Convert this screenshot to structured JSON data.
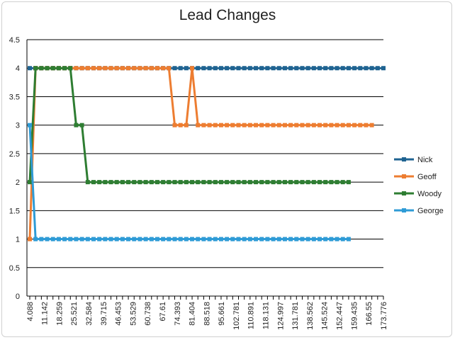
{
  "chart_data": {
    "type": "line",
    "title": "Lead Changes",
    "ylim": [
      0,
      4.5
    ],
    "ytick_step": 0.5,
    "yticks": [
      "0",
      "0.5",
      "1",
      "1.5",
      "2",
      "2.5",
      "3",
      "3.5",
      "4",
      "4.5"
    ],
    "grid": true,
    "legend_position": "right",
    "num_points": 62,
    "xtick_labels": [
      "4.088",
      "11.142",
      "18.259",
      "25.521",
      "32.584",
      "39.715",
      "46.453",
      "53.529",
      "60.738",
      "67.61",
      "74.393",
      "81.404",
      "88.518",
      "95.661",
      "102.781",
      "110.891",
      "118.131",
      "124.997",
      "131.781",
      "138.562",
      "145.524",
      "152.447",
      "159.435",
      "166.55",
      "173.776"
    ],
    "series": [
      {
        "name": "Nick",
        "color": "#1f6391",
        "values": [
          4,
          4,
          4,
          4,
          4,
          4,
          4,
          4,
          4,
          4,
          4,
          4,
          4,
          4,
          4,
          4,
          4,
          4,
          4,
          4,
          4,
          4,
          4,
          4,
          4,
          4,
          4,
          4,
          4,
          4,
          4,
          4,
          4,
          4,
          4,
          4,
          4,
          4,
          4,
          4,
          4,
          4,
          4,
          4,
          4,
          4,
          4,
          4,
          4,
          4,
          4,
          4,
          4,
          4,
          4,
          4,
          4,
          4,
          4,
          4,
          4,
          4
        ]
      },
      {
        "name": "Geoff",
        "color": "#ed7d31",
        "values": [
          1,
          4,
          4,
          4,
          4,
          4,
          4,
          4,
          4,
          4,
          4,
          4,
          4,
          4,
          4,
          4,
          4,
          4,
          4,
          4,
          4,
          4,
          4,
          4,
          4,
          3,
          3,
          3,
          4,
          3,
          3,
          3,
          3,
          3,
          3,
          3,
          3,
          3,
          3,
          3,
          3,
          3,
          3,
          3,
          3,
          3,
          3,
          3,
          3,
          3,
          3,
          3,
          3,
          3,
          3,
          3,
          3,
          3,
          3,
          3
        ]
      },
      {
        "name": "Woody",
        "color": "#2e7d32",
        "values": [
          2,
          4,
          4,
          4,
          4,
          4,
          4,
          4,
          3,
          3,
          2,
          2,
          2,
          2,
          2,
          2,
          2,
          2,
          2,
          2,
          2,
          2,
          2,
          2,
          2,
          2,
          2,
          2,
          2,
          2,
          2,
          2,
          2,
          2,
          2,
          2,
          2,
          2,
          2,
          2,
          2,
          2,
          2,
          2,
          2,
          2,
          2,
          2,
          2,
          2,
          2,
          2,
          2,
          2,
          2,
          2
        ]
      },
      {
        "name": "George",
        "color": "#2e9bd6",
        "values": [
          3,
          1,
          1,
          1,
          1,
          1,
          1,
          1,
          1,
          1,
          1,
          1,
          1,
          1,
          1,
          1,
          1,
          1,
          1,
          1,
          1,
          1,
          1,
          1,
          1,
          1,
          1,
          1,
          1,
          1,
          1,
          1,
          1,
          1,
          1,
          1,
          1,
          1,
          1,
          1,
          1,
          1,
          1,
          1,
          1,
          1,
          1,
          1,
          1,
          1,
          1,
          1,
          1,
          1,
          1,
          1
        ]
      }
    ]
  }
}
